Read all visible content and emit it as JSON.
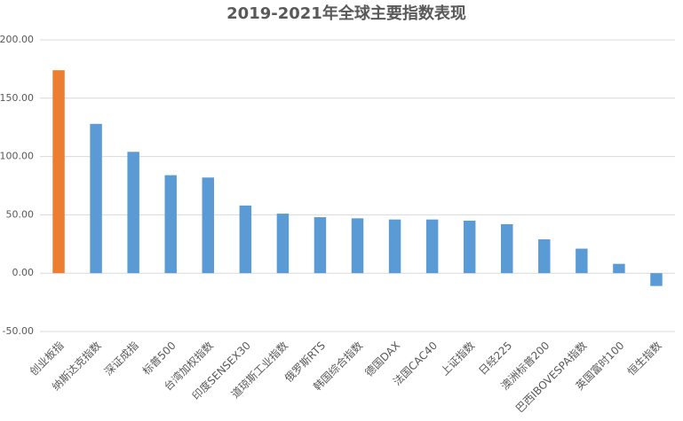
{
  "chart_data": {
    "type": "bar",
    "title": "2019-2021年全球主要指数表现",
    "categories": [
      "创业板指",
      "纳斯达克指数",
      "深证成指",
      "标普500",
      "台湾加权指数",
      "印度SENSEX30",
      "道琼斯工业指数",
      "俄罗斯RTS",
      "韩国综合指数",
      "德国DAX",
      "法国CAC40",
      "上证指数",
      "日经225",
      "澳洲标普200",
      "巴西IBOVESPA指数",
      "英国富时100",
      "恒生指数"
    ],
    "values": [
      174,
      128,
      104,
      84,
      82,
      58,
      51,
      48,
      47,
      46,
      46,
      45,
      42,
      29,
      21,
      8,
      -11
    ],
    "colors": [
      "#ed7d31",
      "#5b9bd5",
      "#5b9bd5",
      "#5b9bd5",
      "#5b9bd5",
      "#5b9bd5",
      "#5b9bd5",
      "#5b9bd5",
      "#5b9bd5",
      "#5b9bd5",
      "#5b9bd5",
      "#5b9bd5",
      "#5b9bd5",
      "#5b9bd5",
      "#5b9bd5",
      "#5b9bd5",
      "#5b9bd5"
    ],
    "ylim": [
      -50,
      200
    ],
    "yticks": [
      {
        "value": -50,
        "label": "-50.00"
      },
      {
        "value": 0,
        "label": "0.00"
      },
      {
        "value": 50,
        "label": "50.00"
      },
      {
        "value": 100,
        "label": "100.00"
      },
      {
        "value": 150,
        "label": "150.00"
      },
      {
        "value": 200,
        "label": "200.00"
      }
    ],
    "grid": true
  }
}
